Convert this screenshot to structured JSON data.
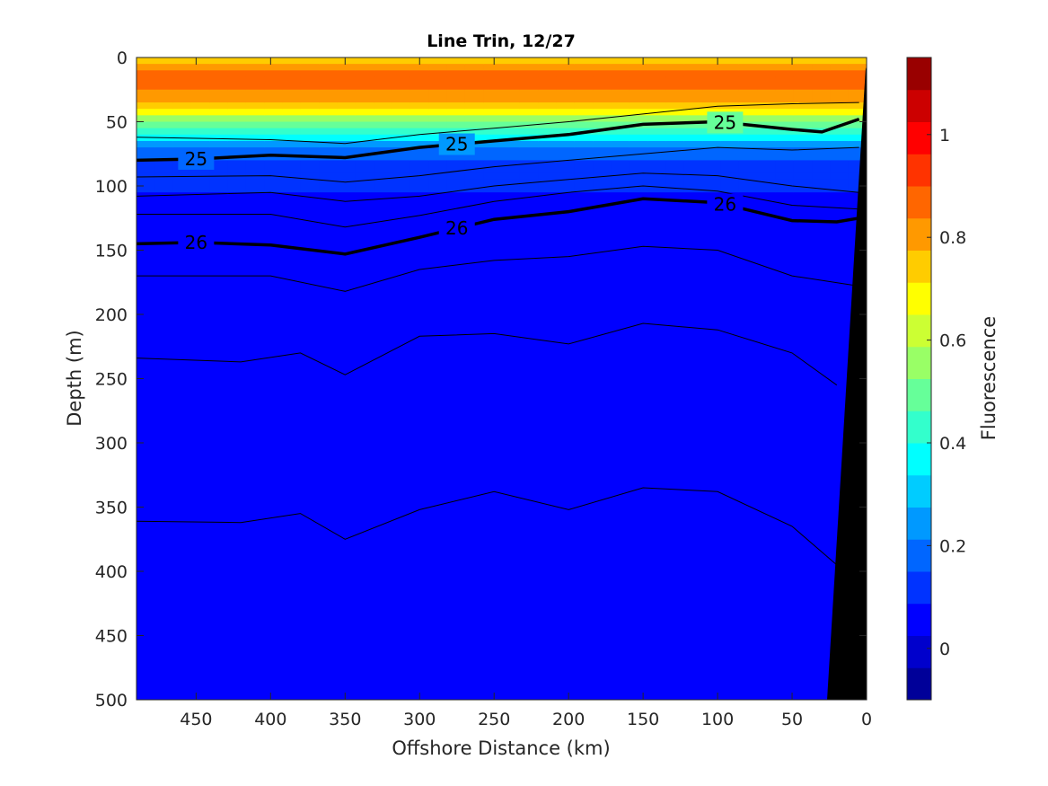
{
  "chart_data": {
    "type": "heatmap",
    "title": "Line Trin, 12/27",
    "xlabel": "Offshore Distance (km)",
    "ylabel": "Depth (m)",
    "xlim": [
      490,
      0
    ],
    "ylim": [
      0,
      500
    ],
    "x_reversed": true,
    "y_reversed": true,
    "xticks": [
      450,
      400,
      350,
      300,
      250,
      200,
      150,
      100,
      50,
      0
    ],
    "yticks": [
      0,
      50,
      100,
      150,
      200,
      250,
      300,
      350,
      400,
      450,
      500
    ],
    "colorbar": {
      "label": "Fluorescence",
      "range": [
        -0.1,
        1.15
      ],
      "ticks": [
        0,
        0.2,
        0.4,
        0.6,
        0.8,
        1
      ],
      "tick_labels": [
        "0",
        "0.2",
        "0.4",
        "0.6",
        "0.8",
        "1"
      ],
      "colormap": "jet"
    },
    "fluorescence_profile": {
      "depth": [
        0,
        20,
        40,
        55,
        65,
        75,
        90,
        110,
        150,
        200,
        300,
        400,
        500
      ],
      "values": [
        0.75,
        0.9,
        0.7,
        0.45,
        0.3,
        0.17,
        0.1,
        0.08,
        0.06,
        0.05,
        0.05,
        0.04,
        0.03
      ]
    },
    "density_contours": [
      {
        "label": "25",
        "x": [
          490,
          450,
          400,
          350,
          300,
          250,
          200,
          150,
          100,
          50,
          30,
          5
        ],
        "depth": [
          80,
          79,
          76,
          78,
          70,
          65,
          60,
          52,
          50,
          56,
          58,
          48
        ]
      },
      {
        "label": "26",
        "x": [
          490,
          450,
          400,
          350,
          300,
          250,
          200,
          150,
          100,
          50,
          20,
          5
        ],
        "depth": [
          145,
          144,
          146,
          153,
          140,
          126,
          120,
          110,
          113,
          127,
          128,
          125
        ]
      }
    ],
    "density_contours_unlabeled": [
      {
        "x": [
          490,
          400,
          350,
          300,
          250,
          200,
          150,
          100,
          50,
          5
        ],
        "depth": [
          62,
          64,
          67,
          60,
          55,
          50,
          44,
          38,
          36,
          35
        ]
      },
      {
        "x": [
          490,
          400,
          350,
          300,
          250,
          200,
          150,
          100,
          50,
          5
        ],
        "depth": [
          93,
          92,
          97,
          92,
          85,
          80,
          75,
          70,
          72,
          70
        ]
      },
      {
        "x": [
          490,
          400,
          350,
          300,
          250,
          200,
          150,
          100,
          50,
          5
        ],
        "depth": [
          108,
          105,
          112,
          108,
          100,
          95,
          90,
          92,
          100,
          105
        ]
      },
      {
        "x": [
          490,
          400,
          350,
          300,
          250,
          200,
          150,
          100,
          50,
          5
        ],
        "depth": [
          122,
          122,
          132,
          123,
          112,
          105,
          100,
          104,
          115,
          118
        ]
      },
      {
        "x": [
          490,
          400,
          350,
          300,
          250,
          200,
          150,
          100,
          50,
          5
        ],
        "depth": [
          170,
          170,
          182,
          165,
          158,
          155,
          147,
          150,
          170,
          178
        ]
      },
      {
        "x": [
          490,
          420,
          380,
          350,
          300,
          250,
          200,
          150,
          100,
          50,
          20
        ],
        "depth": [
          234,
          237,
          230,
          247,
          217,
          215,
          223,
          207,
          212,
          230,
          255
        ]
      },
      {
        "x": [
          490,
          420,
          380,
          350,
          300,
          250,
          200,
          150,
          100,
          50,
          20
        ],
        "depth": [
          361,
          362,
          355,
          375,
          352,
          338,
          352,
          335,
          338,
          365,
          395
        ]
      }
    ]
  }
}
